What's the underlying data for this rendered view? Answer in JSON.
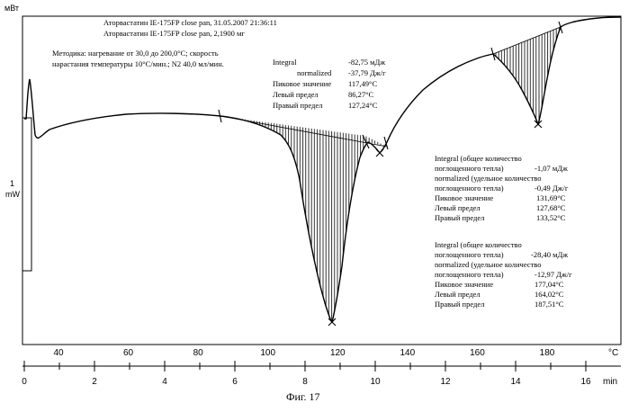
{
  "chart_data": {
    "type": "line",
    "y_unit_label": "мВт",
    "header_lines": [
      "Аторвастатин IE-175FP close pan, 31.05.2007 21:36:11",
      "Аторвастатин IE-175FP close pan, 2,1900 мг"
    ],
    "method_lines": [
      "Методика:   нагревание   от   30,0   до   200,0°C;   скорость",
      "нарастания температуры 10°C/мин.; N2 40,0 мл/мин."
    ],
    "scale_bar": {
      "value": "1",
      "unit": "mW"
    },
    "temp_axis": {
      "unit": "°C",
      "ticks": [
        40,
        60,
        80,
        100,
        120,
        140,
        160,
        180
      ]
    },
    "time_axis": {
      "unit": "min",
      "ticks": [
        0,
        2,
        4,
        6,
        8,
        10,
        12,
        14,
        16
      ],
      "xlim": [
        0,
        17
      ]
    },
    "peaks": [
      {
        "rows": [
          {
            "label": "Integral",
            "value": "-82,75 мДж"
          },
          {
            "label": "normalized",
            "value": "-37,79 Дж/г"
          },
          {
            "label": "Пиковое значение",
            "value": "117,49°C"
          },
          {
            "label": "Левый предел",
            "value": "86,27°C"
          },
          {
            "label": "Правый предел",
            "value": "127,24°C"
          }
        ]
      },
      {
        "rows": [
          {
            "label": "Integral  (общее количество",
            "value": ""
          },
          {
            "label": "поглощенного тепла)",
            "value": "-1,07 мДж"
          },
          {
            "label": "normalized  (удельное количество",
            "value": ""
          },
          {
            "label": "поглощенного тепла)",
            "value": "-0,49 Дж/г"
          },
          {
            "label": "Пиковое значение",
            "value": "131,69°C"
          },
          {
            "label": "Левый предел",
            "value": "127,68°C"
          },
          {
            "label": "Правый предел",
            "value": "133,52°C"
          }
        ]
      },
      {
        "rows": [
          {
            "label": "Integral  (общее количество",
            "value": ""
          },
          {
            "label": "поглощенного тепла)",
            "value": "-28,40 мДж"
          },
          {
            "label": "normalized  (удельное количество",
            "value": ""
          },
          {
            "label": "поглощенного тепла)",
            "value": "-12,97 Дж/г"
          },
          {
            "label": "Пиковое значение",
            "value": "177,04°C"
          },
          {
            "label": "Левый предел",
            "value": "164,02°C"
          },
          {
            "label": "Правый предел",
            "value": "187,51°C"
          }
        ]
      }
    ]
  },
  "caption": "Фиг. 17"
}
